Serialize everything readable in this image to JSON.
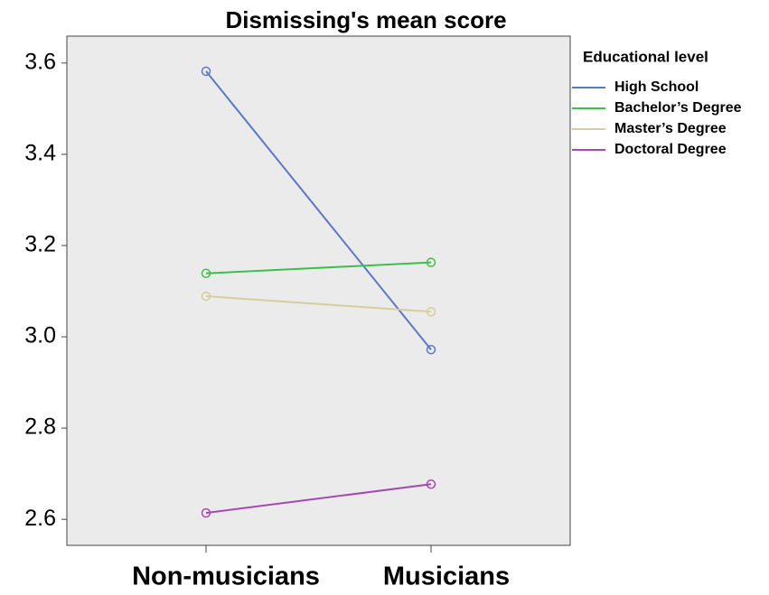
{
  "chart_data": {
    "type": "line",
    "title": "Dismissing's mean score",
    "categories": [
      "Non-musicians",
      "Musicians"
    ],
    "legend_title": "Educational level",
    "series": [
      {
        "name": "High School",
        "color": "#5b78c8",
        "values": [
          3.582,
          2.972
        ]
      },
      {
        "name": "Bachelor’s Degree",
        "color": "#3cbf4a",
        "values": [
          3.139,
          3.163
        ]
      },
      {
        "name": "Master’s Degree",
        "color": "#d6cd9c",
        "values": [
          3.089,
          3.055
        ]
      },
      {
        "name": "Doctoral Degree",
        "color": "#a24bb0",
        "values": [
          2.614,
          2.677
        ]
      }
    ],
    "ylim": [
      2.543,
      3.659
    ],
    "yticks": [
      {
        "value": 2.6,
        "label": "2.6"
      },
      {
        "value": 2.8,
        "label": "2.8"
      },
      {
        "value": 3.0,
        "label": "3.0"
      },
      {
        "value": 3.2,
        "label": "3.2"
      },
      {
        "value": 3.4,
        "label": "3.4"
      },
      {
        "value": 3.6,
        "label": "3.6"
      }
    ],
    "legend_position": "right"
  }
}
